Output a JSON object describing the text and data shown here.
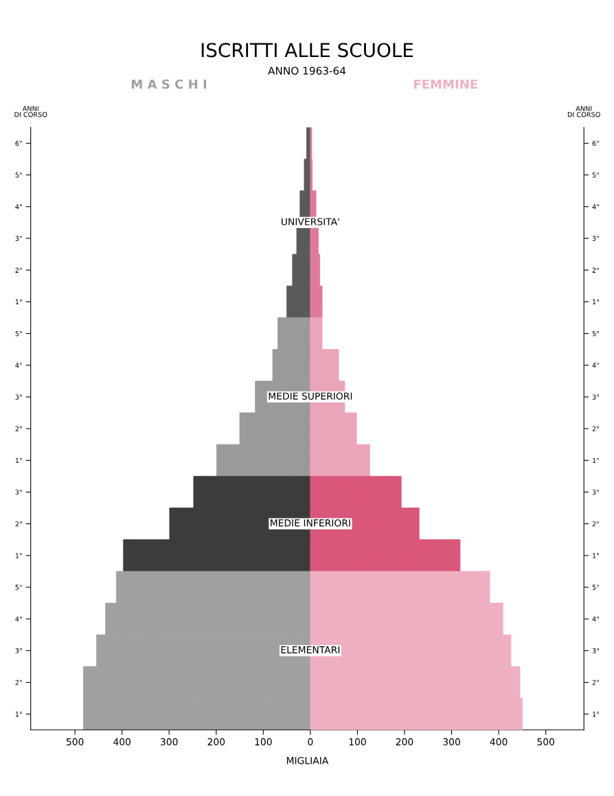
{
  "chart_data": {
    "type": "bar",
    "orientation": "horizontal",
    "title": "ISCRITTI ALLE SCUOLE",
    "subtitle": "ANNO 1963-64",
    "xlabel": "MIGLIAIA",
    "ylabel": "ANNI\nDI CORSO",
    "y2label": "ANNI\nDI CORSO",
    "categories": [
      "6°",
      "5°",
      "4°",
      "3°",
      "2°",
      "1°",
      "5°",
      "4°",
      "3°",
      "2°",
      "1°",
      "3°",
      "2°",
      "1°",
      "5°",
      "4°",
      "3°",
      "2°",
      "1°"
    ],
    "series": [
      {
        "name": "M A S C H I",
        "values": [
          -8,
          -13,
          -22,
          -29,
          -38,
          -50,
          -69,
          -80,
          -117,
          -150,
          -199,
          -248,
          -299,
          -397,
          -412,
          -435,
          -454,
          -482,
          -482
        ],
        "colors": [
          "#5a5a5a",
          "#5a5a5a",
          "#5a5a5a",
          "#5a5a5a",
          "#5a5a5a",
          "#5a5a5a",
          "#9a9a9a",
          "#9a9a9a",
          "#9a9a9a",
          "#9a9a9a",
          "#9a9a9a",
          "#3c3c3c",
          "#3c3c3c",
          "#3c3c3c",
          "#a0a0a0",
          "#a0a0a0",
          "#a0a0a0",
          "#a0a0a0",
          "#a0a0a0"
        ]
      },
      {
        "name": "FEMMINE",
        "values": [
          3,
          4,
          12,
          17,
          20,
          25,
          25,
          60,
          73,
          98,
          126,
          193,
          231,
          318,
          381,
          409,
          426,
          445,
          450
        ],
        "colors": [
          "#e07a9a",
          "#e07a9a",
          "#e07a9a",
          "#e07a9a",
          "#e07a9a",
          "#e07a9a",
          "#eba5b8",
          "#eba5b8",
          "#eba5b8",
          "#eba5b8",
          "#eba5b8",
          "#d9577a",
          "#d9577a",
          "#d9577a",
          "#eeb0c0",
          "#eeb0c0",
          "#eeb0c0",
          "#eeb0c0",
          "#eeb0c0"
        ]
      }
    ],
    "xlim": [
      -594,
      581
    ],
    "xticks": [
      {
        "value": -500,
        "label": "500"
      },
      {
        "value": -400,
        "label": "400"
      },
      {
        "value": -300,
        "label": "300"
      },
      {
        "value": -200,
        "label": "200"
      },
      {
        "value": -100,
        "label": "100"
      },
      0,
      100,
      200,
      300,
      400,
      500
    ],
    "stacked": true,
    "annotations": [
      "UNIVERSITA'",
      "MEDIE SUPERIORI",
      "MEDIE INFERIORI",
      "ELEMENTARI"
    ]
  }
}
